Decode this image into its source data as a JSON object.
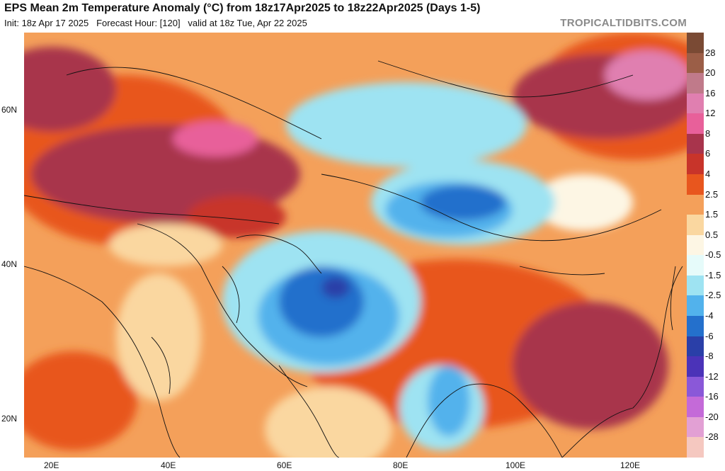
{
  "header": {
    "title": "EPS Mean 2m Temperature Anomaly (°C) from 18z17Apr2025 to 18z22Apr2025 (Days 1-5)",
    "subtitle": "Init: 18z Apr 17 2025   Forecast Hour: [120]   valid at 18z Tue, Apr 22 2025",
    "credit": "TROPICALTIDBITS.COM"
  },
  "axes": {
    "lat_labels": [
      "60N",
      "40N",
      "20N"
    ],
    "lon_labels": [
      "20E",
      "40E",
      "60E",
      "80E",
      "100E",
      "120E"
    ]
  },
  "colorbar": {
    "labels": [
      "28",
      "20",
      "16",
      "12",
      "8",
      "6",
      "4",
      "2.5",
      "1.5",
      "0.5",
      "-0.5",
      "-1.5",
      "-2.5",
      "-4",
      "-6",
      "-8",
      "-12",
      "-16",
      "-20",
      "-28"
    ],
    "colors": [
      "#7a4a34",
      "#9b5e47",
      "#c07a8a",
      "#e07fb0",
      "#e8609a",
      "#a8344c",
      "#c8342a",
      "#e8561e",
      "#f4a05a",
      "#fad7a0",
      "#fdf6e4",
      "#e6fbfa",
      "#9ee3f2",
      "#52b2ec",
      "#2470cc",
      "#2a3fa8",
      "#4b33b8",
      "#8a58d8",
      "#c46ad8",
      "#e2a0d4",
      "#f5c8c0"
    ]
  }
}
